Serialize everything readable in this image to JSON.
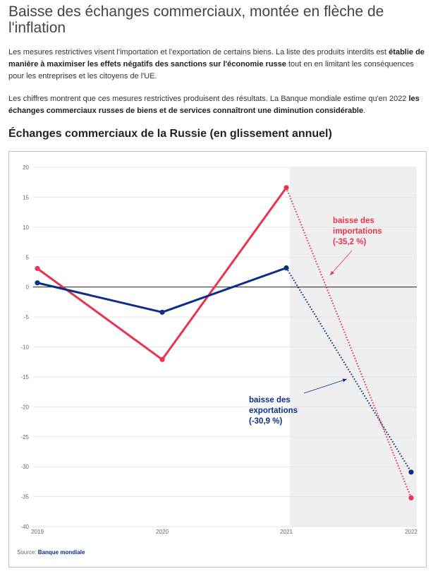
{
  "heading": "Baisse des échanges commerciaux, montée en flèche de l'inflation",
  "para1": {
    "t1": "Les mesures restrictives visent l'importation et l'exportation de certains biens. La liste des produits interdits est ",
    "b1": "établie de manière à maximiser les effets négatifs des sanctions sur l'économie russe",
    "t2": " tout en en limitant les conséquences pour les entreprises et les citoyens de l'UE."
  },
  "para2": {
    "t1": "Les chiffres montrent que ces mesures restrictives produisent des résultats. La Banque mondiale estime qu'en 2022 ",
    "b1": "les échanges commerciaux russes de biens et de services connaîtront une diminution considérable",
    "t2": "."
  },
  "chart_title": "Échanges commerciaux de la Russie (en glissement annuel)",
  "source": {
    "label": "Source: ",
    "name": "Banque mondiale"
  },
  "colors": {
    "imports": "#e8344e",
    "exports": "#0a2e8a",
    "shade": "#efefef"
  },
  "chart_data": {
    "type": "line",
    "x": [
      "2019",
      "2020",
      "2021",
      "2022"
    ],
    "ylim": [
      -40,
      20
    ],
    "yticks": [
      20,
      15,
      10,
      5,
      0,
      -5,
      -10,
      -15,
      -20,
      -25,
      -30,
      -35,
      -40
    ],
    "grid": true,
    "forecast_from": "2021",
    "series": [
      {
        "key": "imports",
        "values": [
          3.1,
          -12.1,
          16.6,
          -35.2
        ]
      },
      {
        "key": "exports",
        "values": [
          0.7,
          -4.2,
          3.2,
          -30.9
        ]
      }
    ],
    "annotations": [
      {
        "key": "imports",
        "lines": [
          "baisse des",
          "importations",
          "(-35,2 %)"
        ]
      },
      {
        "key": "exports",
        "lines": [
          "baisse des",
          "exportations",
          "(-30,9 %)"
        ]
      }
    ]
  }
}
